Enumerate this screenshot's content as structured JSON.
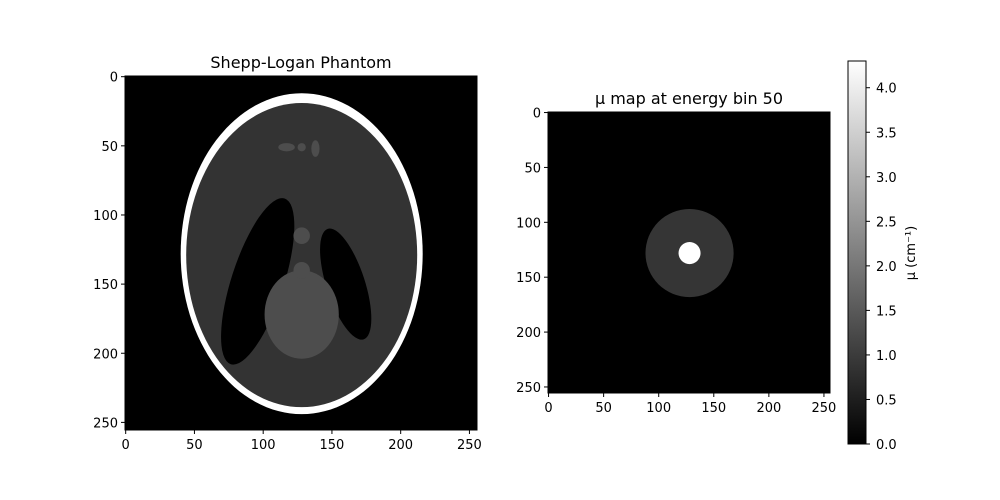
{
  "chart_data": [
    {
      "type": "heatmap",
      "title": "Shepp-Logan Phantom",
      "xlim": [
        0,
        255
      ],
      "ylim": [
        255,
        0
      ],
      "xticks": [
        0,
        50,
        100,
        150,
        200,
        250
      ],
      "yticks": [
        0,
        50,
        100,
        150,
        200,
        250
      ],
      "colormap": "gray",
      "grid": false,
      "content": {
        "background": 0.0,
        "ellipses": [
          {
            "cx": 128,
            "cy": 128,
            "rx": 88,
            "ry": 116,
            "value": 1.0
          },
          {
            "cx": 128,
            "cy": 129,
            "rx": 84,
            "ry": 110,
            "value": 0.2
          },
          {
            "cx": 96,
            "cy": 148,
            "rx": 19,
            "ry": 63,
            "angle": 18,
            "value": 0.0
          },
          {
            "cx": 160,
            "cy": 150,
            "rx": 14,
            "ry": 42,
            "angle": -18,
            "value": 0.0
          },
          {
            "cx": 128,
            "cy": 172,
            "rx": 27,
            "ry": 32,
            "value": 0.3
          },
          {
            "cx": 128,
            "cy": 115,
            "rx": 6,
            "ry": 6,
            "value": 0.3
          },
          {
            "cx": 128,
            "cy": 140,
            "rx": 6,
            "ry": 6,
            "value": 0.3
          },
          {
            "cx": 117,
            "cy": 51,
            "rx": 6,
            "ry": 3,
            "value": 0.3
          },
          {
            "cx": 128,
            "cy": 51,
            "rx": 3,
            "ry": 3,
            "value": 0.3
          },
          {
            "cx": 138,
            "cy": 52,
            "rx": 3,
            "ry": 6,
            "value": 0.3
          }
        ]
      }
    },
    {
      "type": "heatmap",
      "title": "μ map at energy bin 50",
      "xlim": [
        0,
        255
      ],
      "ylim": [
        255,
        0
      ],
      "xticks": [
        0,
        50,
        100,
        150,
        200,
        250
      ],
      "yticks": [
        0,
        50,
        100,
        150,
        200,
        250
      ],
      "colormap": "gray",
      "vmin": 0.0,
      "vmax": 4.3,
      "grid": false,
      "content": {
        "background": 0.0,
        "circles": [
          {
            "cx": 128,
            "cy": 128,
            "r": 40,
            "value": 0.9
          },
          {
            "cx": 128,
            "cy": 128,
            "r": 10,
            "value": 4.3
          }
        ]
      },
      "colorbar": {
        "label": "μ (cm⁻¹)",
        "ticks": [
          "0.0",
          "0.5",
          "1.0",
          "1.5",
          "2.0",
          "2.5",
          "3.0",
          "3.5",
          "4.0"
        ],
        "tick_values": [
          0.0,
          0.5,
          1.0,
          1.5,
          2.0,
          2.5,
          3.0,
          3.5,
          4.0
        ]
      }
    }
  ]
}
